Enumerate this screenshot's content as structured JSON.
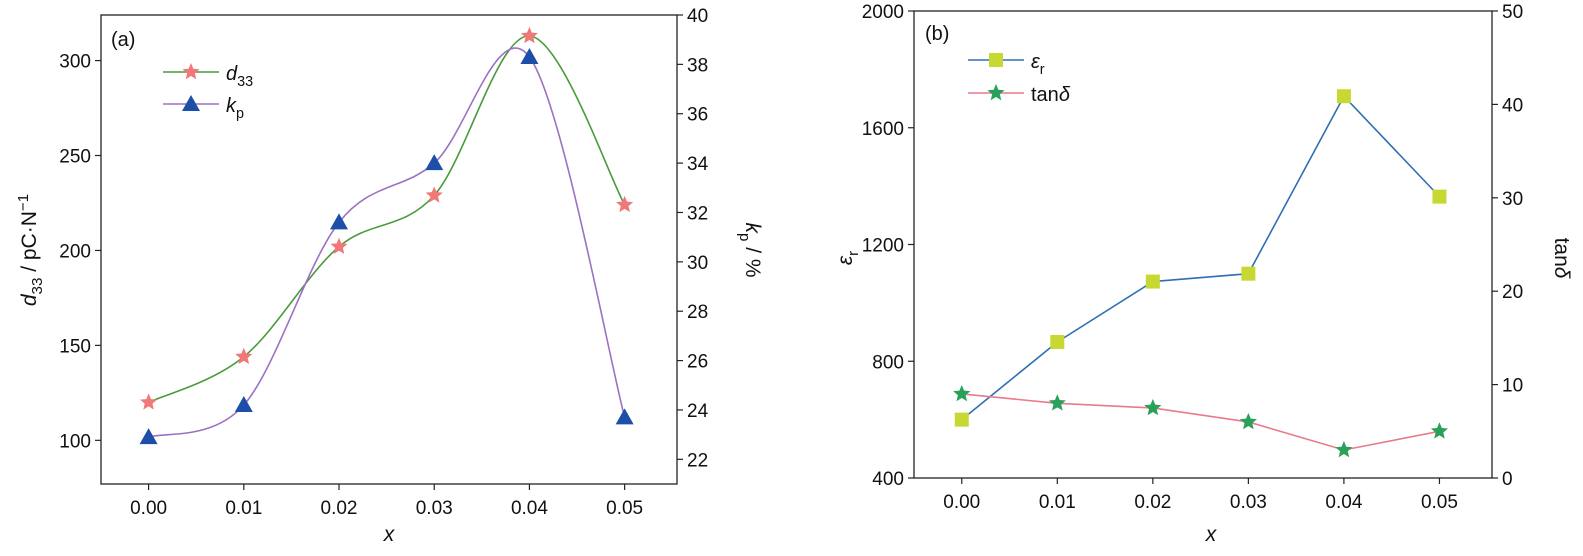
{
  "chart_data": [
    {
      "type": "line",
      "panel_label": "(a)",
      "x": [
        0.0,
        0.01,
        0.02,
        0.03,
        0.04,
        0.05
      ],
      "x_ticks": [
        "0.00",
        "0.01",
        "0.02",
        "0.03",
        "0.04",
        "0.05"
      ],
      "xlabel": "x",
      "xlim": [
        -0.005,
        0.0555
      ],
      "ylabel_left": "d33 / pC·N−1",
      "ylim_left": [
        77,
        324
      ],
      "y_ticks_left": [
        "100",
        "150",
        "200",
        "250",
        "300"
      ],
      "ylabel_right": "kp / %",
      "ylim_right": [
        21,
        40
      ],
      "y_ticks_right": [
        "22",
        "24",
        "26",
        "28",
        "30",
        "32",
        "34",
        "36",
        "38",
        "40"
      ],
      "grid": false,
      "legend_position": "top-left",
      "series": [
        {
          "name": "d33",
          "axis": "left",
          "marker": "star",
          "marker_color": "#f07878",
          "line_color": "#4a9a3c",
          "smooth": true,
          "values": [
            120,
            144,
            202,
            229,
            313,
            224
          ]
        },
        {
          "name": "kp",
          "axis": "right",
          "marker": "triangle",
          "marker_color": "#1e4fa8",
          "line_color": "#9b72c2",
          "smooth": true,
          "values": [
            22.9,
            24.2,
            31.6,
            34.0,
            38.3,
            23.7
          ]
        }
      ]
    },
    {
      "type": "line",
      "panel_label": "(b)",
      "x": [
        0.0,
        0.01,
        0.02,
        0.03,
        0.04,
        0.05
      ],
      "x_ticks": [
        "0.00",
        "0.01",
        "0.02",
        "0.03",
        "0.04",
        "0.05"
      ],
      "xlabel": "x",
      "xlim": [
        -0.005,
        0.0555
      ],
      "ylabel_left": "εr",
      "ylim_left": [
        400,
        2000
      ],
      "y_ticks_left": [
        "400",
        "800",
        "1200",
        "1600",
        "2000"
      ],
      "ylabel_right": "tanδ",
      "ylim_right": [
        0,
        50
      ],
      "y_ticks_right": [
        "0",
        "10",
        "20",
        "30",
        "40",
        "50"
      ],
      "grid": false,
      "legend_position": "top-left",
      "series": [
        {
          "name": "εr",
          "axis": "left",
          "marker": "square",
          "marker_color": "#c8d832",
          "line_color": "#2f6fb3",
          "smooth": false,
          "values": [
            600,
            866,
            1073,
            1100,
            1708,
            1364
          ]
        },
        {
          "name": "tanδ",
          "axis": "right",
          "marker": "star",
          "marker_color": "#2aa15a",
          "line_color": "#e87a8a",
          "smooth": false,
          "values": [
            9.0,
            8.0,
            7.5,
            6.0,
            3.0,
            5.0
          ]
        }
      ]
    }
  ]
}
